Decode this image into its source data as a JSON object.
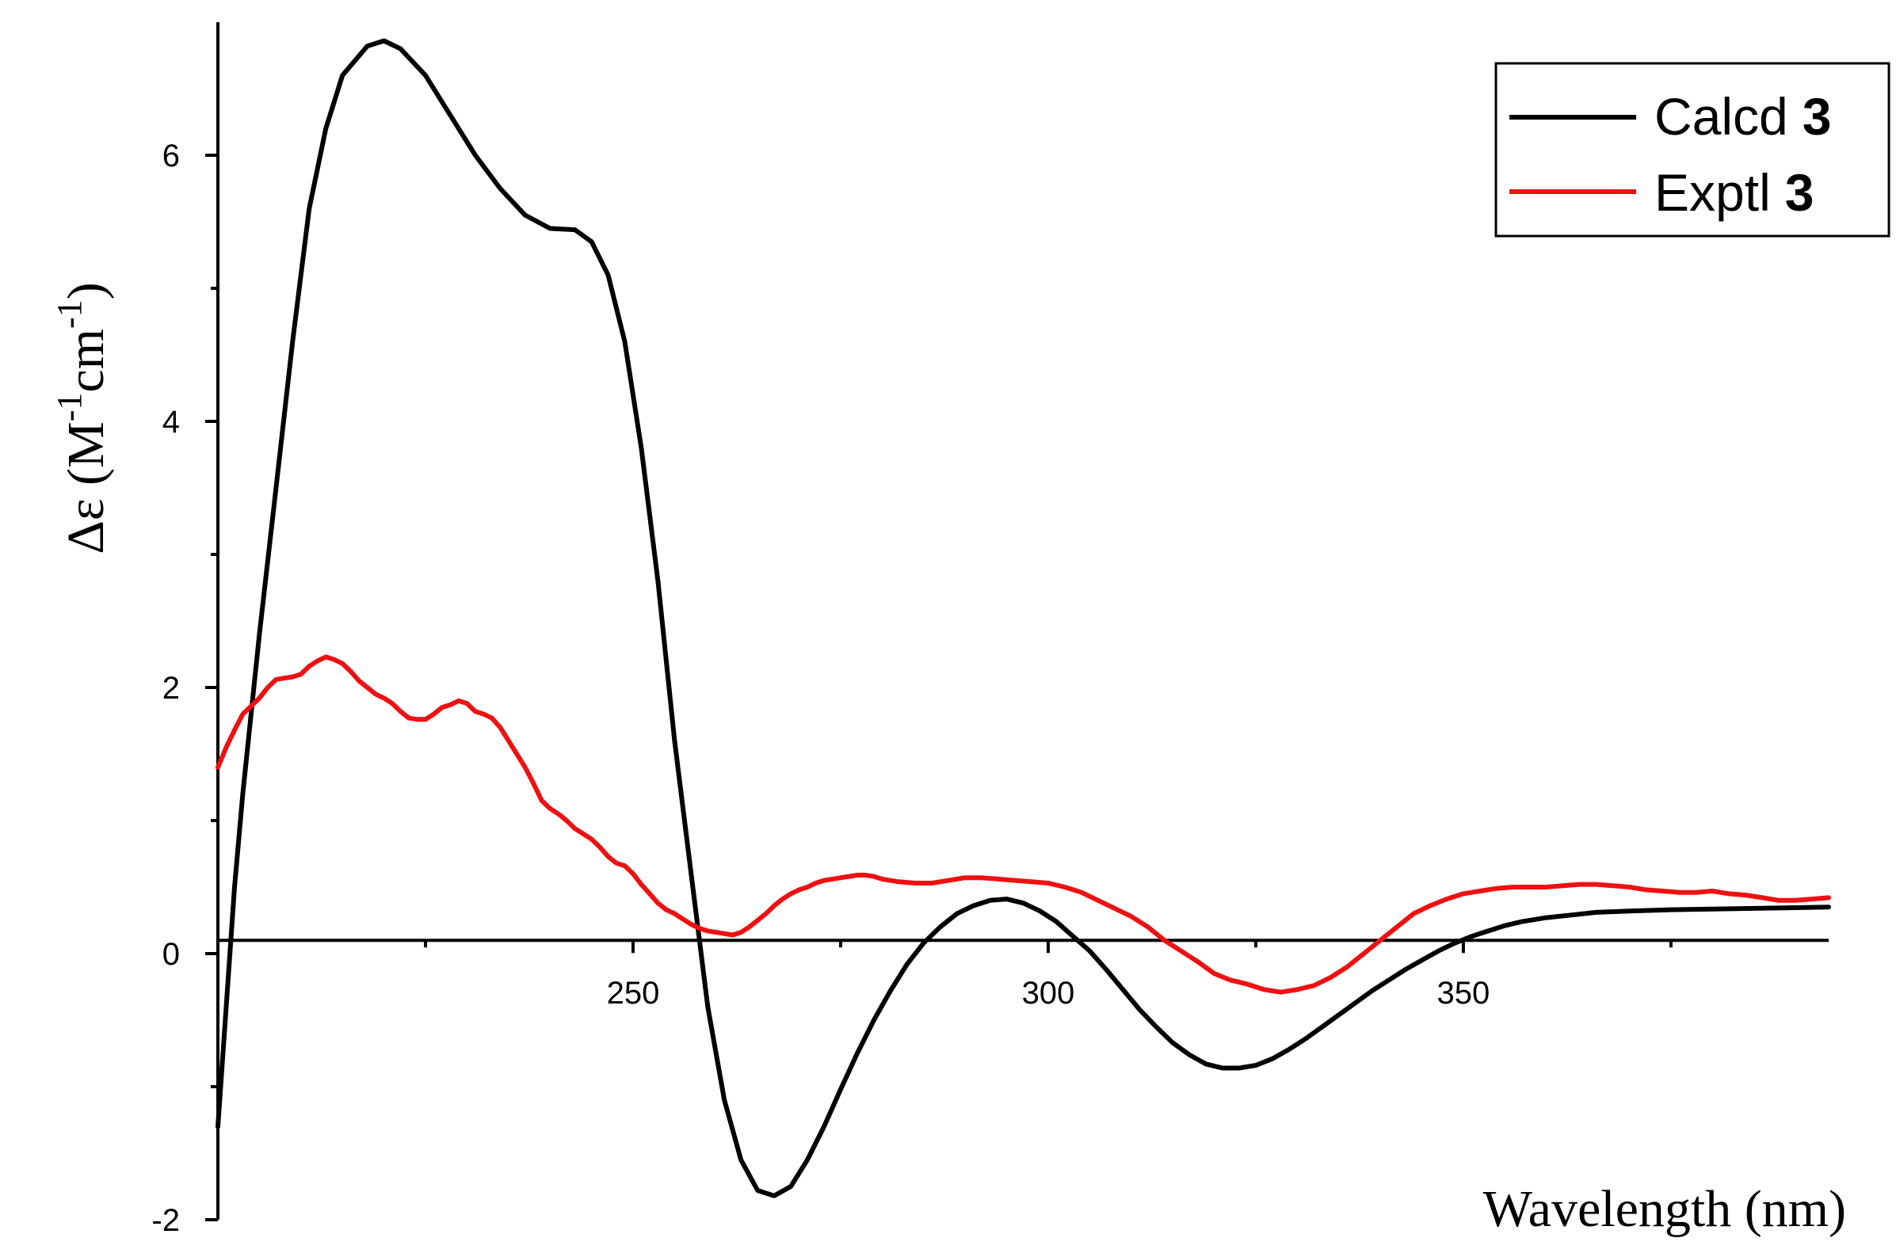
{
  "chart_data": {
    "type": "line",
    "xlabel": "Wavelength (nm)",
    "ylabel": {
      "base": "Δε (M",
      "sup1": "-1",
      "mid": "cm",
      "sup2": "-1",
      "end": ")"
    },
    "xlim": [
      200,
      394
    ],
    "ylim": [
      -2,
      7
    ],
    "x_ticks": [
      {
        "value": 250,
        "label": "250"
      },
      {
        "value": 300,
        "label": "300"
      },
      {
        "value": 350,
        "label": "350"
      }
    ],
    "y_ticks": [
      {
        "value": -2,
        "label": "-2"
      },
      {
        "value": 0,
        "label": "0"
      },
      {
        "value": 2,
        "label": "2"
      },
      {
        "value": 4,
        "label": "4"
      },
      {
        "value": 6,
        "label": "6"
      }
    ],
    "x_minor_ticks": [
      225,
      275,
      325,
      375
    ],
    "y_minor_ticks": [
      -1,
      1,
      3,
      5
    ],
    "baseline_y": 0.1,
    "grid": false,
    "legend_position": "top-right",
    "series": [
      {
        "name": "Calcd",
        "name_bold": "3",
        "color": "#000000",
        "points": [
          [
            200,
            -1.3
          ],
          [
            201,
            -0.4
          ],
          [
            202,
            0.5
          ],
          [
            203,
            1.2
          ],
          [
            205,
            2.4
          ],
          [
            207,
            3.5
          ],
          [
            209,
            4.6
          ],
          [
            211,
            5.6
          ],
          [
            213,
            6.2
          ],
          [
            215,
            6.6
          ],
          [
            218,
            6.82
          ],
          [
            220,
            6.86
          ],
          [
            222,
            6.8
          ],
          [
            225,
            6.6
          ],
          [
            228,
            6.3
          ],
          [
            231,
            6.0
          ],
          [
            234,
            5.75
          ],
          [
            237,
            5.55
          ],
          [
            240,
            5.45
          ],
          [
            243,
            5.44
          ],
          [
            245,
            5.35
          ],
          [
            247,
            5.1
          ],
          [
            249,
            4.6
          ],
          [
            251,
            3.8
          ],
          [
            253,
            2.8
          ],
          [
            255,
            1.6
          ],
          [
            257,
            0.6
          ],
          [
            259,
            -0.4
          ],
          [
            261,
            -1.1
          ],
          [
            263,
            -1.55
          ],
          [
            265,
            -1.78
          ],
          [
            267,
            -1.82
          ],
          [
            269,
            -1.75
          ],
          [
            271,
            -1.55
          ],
          [
            273,
            -1.3
          ],
          [
            275,
            -1.02
          ],
          [
            277,
            -0.75
          ],
          [
            279,
            -0.5
          ],
          [
            281,
            -0.28
          ],
          [
            283,
            -0.08
          ],
          [
            285,
            0.08
          ],
          [
            287,
            0.2
          ],
          [
            289,
            0.3
          ],
          [
            291,
            0.36
          ],
          [
            293,
            0.4
          ],
          [
            295,
            0.41
          ],
          [
            297,
            0.38
          ],
          [
            299,
            0.32
          ],
          [
            301,
            0.24
          ],
          [
            303,
            0.13
          ],
          [
            305,
            0.02
          ],
          [
            307,
            -0.12
          ],
          [
            309,
            -0.27
          ],
          [
            311,
            -0.42
          ],
          [
            313,
            -0.55
          ],
          [
            315,
            -0.67
          ],
          [
            317,
            -0.76
          ],
          [
            319,
            -0.83
          ],
          [
            321,
            -0.86
          ],
          [
            323,
            -0.86
          ],
          [
            325,
            -0.84
          ],
          [
            327,
            -0.79
          ],
          [
            329,
            -0.72
          ],
          [
            331,
            -0.64
          ],
          [
            333,
            -0.55
          ],
          [
            335,
            -0.46
          ],
          [
            337,
            -0.37
          ],
          [
            339,
            -0.28
          ],
          [
            341,
            -0.2
          ],
          [
            343,
            -0.12
          ],
          [
            345,
            -0.05
          ],
          [
            347,
            0.02
          ],
          [
            349,
            0.08
          ],
          [
            351,
            0.13
          ],
          [
            353,
            0.17
          ],
          [
            355,
            0.21
          ],
          [
            357,
            0.24
          ],
          [
            360,
            0.27
          ],
          [
            363,
            0.29
          ],
          [
            366,
            0.31
          ],
          [
            370,
            0.32
          ],
          [
            375,
            0.33
          ],
          [
            380,
            0.335
          ],
          [
            385,
            0.34
          ],
          [
            390,
            0.345
          ],
          [
            394,
            0.35
          ]
        ]
      },
      {
        "name": "Exptl",
        "name_bold": "3",
        "color": "#ee1111",
        "points": [
          [
            200,
            1.4
          ],
          [
            201,
            1.55
          ],
          [
            202,
            1.68
          ],
          [
            203,
            1.8
          ],
          [
            204,
            1.86
          ],
          [
            205,
            1.92
          ],
          [
            206,
            2.0
          ],
          [
            207,
            2.06
          ],
          [
            208,
            2.07
          ],
          [
            209,
            2.08
          ],
          [
            210,
            2.1
          ],
          [
            211,
            2.16
          ],
          [
            212,
            2.2
          ],
          [
            213,
            2.23
          ],
          [
            214,
            2.21
          ],
          [
            215,
            2.18
          ],
          [
            216,
            2.12
          ],
          [
            217,
            2.05
          ],
          [
            218,
            2.0
          ],
          [
            219,
            1.95
          ],
          [
            220,
            1.92
          ],
          [
            221,
            1.88
          ],
          [
            222,
            1.82
          ],
          [
            223,
            1.77
          ],
          [
            224,
            1.76
          ],
          [
            225,
            1.76
          ],
          [
            226,
            1.8
          ],
          [
            227,
            1.85
          ],
          [
            228,
            1.87
          ],
          [
            229,
            1.9
          ],
          [
            230,
            1.88
          ],
          [
            231,
            1.82
          ],
          [
            232,
            1.8
          ],
          [
            233,
            1.77
          ],
          [
            234,
            1.7
          ],
          [
            235,
            1.6
          ],
          [
            236,
            1.5
          ],
          [
            237,
            1.4
          ],
          [
            238,
            1.28
          ],
          [
            239,
            1.15
          ],
          [
            240,
            1.09
          ],
          [
            241,
            1.05
          ],
          [
            242,
            1.0
          ],
          [
            243,
            0.94
          ],
          [
            244,
            0.9
          ],
          [
            245,
            0.86
          ],
          [
            246,
            0.8
          ],
          [
            247,
            0.73
          ],
          [
            248,
            0.68
          ],
          [
            249,
            0.66
          ],
          [
            250,
            0.6
          ],
          [
            251,
            0.52
          ],
          [
            252,
            0.45
          ],
          [
            253,
            0.38
          ],
          [
            254,
            0.33
          ],
          [
            255,
            0.3
          ],
          [
            256,
            0.26
          ],
          [
            257,
            0.22
          ],
          [
            258,
            0.19
          ],
          [
            259,
            0.17
          ],
          [
            260,
            0.16
          ],
          [
            261,
            0.15
          ],
          [
            262,
            0.14
          ],
          [
            263,
            0.16
          ],
          [
            264,
            0.2
          ],
          [
            265,
            0.25
          ],
          [
            266,
            0.3
          ],
          [
            267,
            0.36
          ],
          [
            268,
            0.41
          ],
          [
            269,
            0.45
          ],
          [
            270,
            0.48
          ],
          [
            271,
            0.5
          ],
          [
            272,
            0.53
          ],
          [
            273,
            0.55
          ],
          [
            274,
            0.56
          ],
          [
            275,
            0.57
          ],
          [
            276,
            0.58
          ],
          [
            277,
            0.59
          ],
          [
            278,
            0.59
          ],
          [
            279,
            0.58
          ],
          [
            280,
            0.56
          ],
          [
            282,
            0.54
          ],
          [
            284,
            0.53
          ],
          [
            286,
            0.53
          ],
          [
            288,
            0.55
          ],
          [
            290,
            0.57
          ],
          [
            292,
            0.57
          ],
          [
            294,
            0.56
          ],
          [
            296,
            0.55
          ],
          [
            298,
            0.54
          ],
          [
            300,
            0.53
          ],
          [
            302,
            0.5
          ],
          [
            304,
            0.46
          ],
          [
            306,
            0.4
          ],
          [
            308,
            0.34
          ],
          [
            310,
            0.28
          ],
          [
            312,
            0.2
          ],
          [
            314,
            0.1
          ],
          [
            316,
            0.02
          ],
          [
            318,
            -0.06
          ],
          [
            320,
            -0.15
          ],
          [
            322,
            -0.2
          ],
          [
            324,
            -0.23
          ],
          [
            326,
            -0.27
          ],
          [
            328,
            -0.29
          ],
          [
            330,
            -0.27
          ],
          [
            332,
            -0.24
          ],
          [
            334,
            -0.18
          ],
          [
            336,
            -0.1
          ],
          [
            338,
            0.0
          ],
          [
            340,
            0.1
          ],
          [
            342,
            0.2
          ],
          [
            344,
            0.3
          ],
          [
            346,
            0.36
          ],
          [
            348,
            0.41
          ],
          [
            350,
            0.45
          ],
          [
            352,
            0.47
          ],
          [
            354,
            0.49
          ],
          [
            356,
            0.5
          ],
          [
            358,
            0.5
          ],
          [
            360,
            0.5
          ],
          [
            362,
            0.51
          ],
          [
            364,
            0.52
          ],
          [
            366,
            0.52
          ],
          [
            368,
            0.51
          ],
          [
            370,
            0.5
          ],
          [
            372,
            0.48
          ],
          [
            374,
            0.47
          ],
          [
            376,
            0.46
          ],
          [
            378,
            0.46
          ],
          [
            380,
            0.47
          ],
          [
            382,
            0.45
          ],
          [
            384,
            0.44
          ],
          [
            386,
            0.42
          ],
          [
            388,
            0.4
          ],
          [
            390,
            0.4
          ],
          [
            392,
            0.41
          ],
          [
            394,
            0.42
          ]
        ]
      }
    ]
  }
}
